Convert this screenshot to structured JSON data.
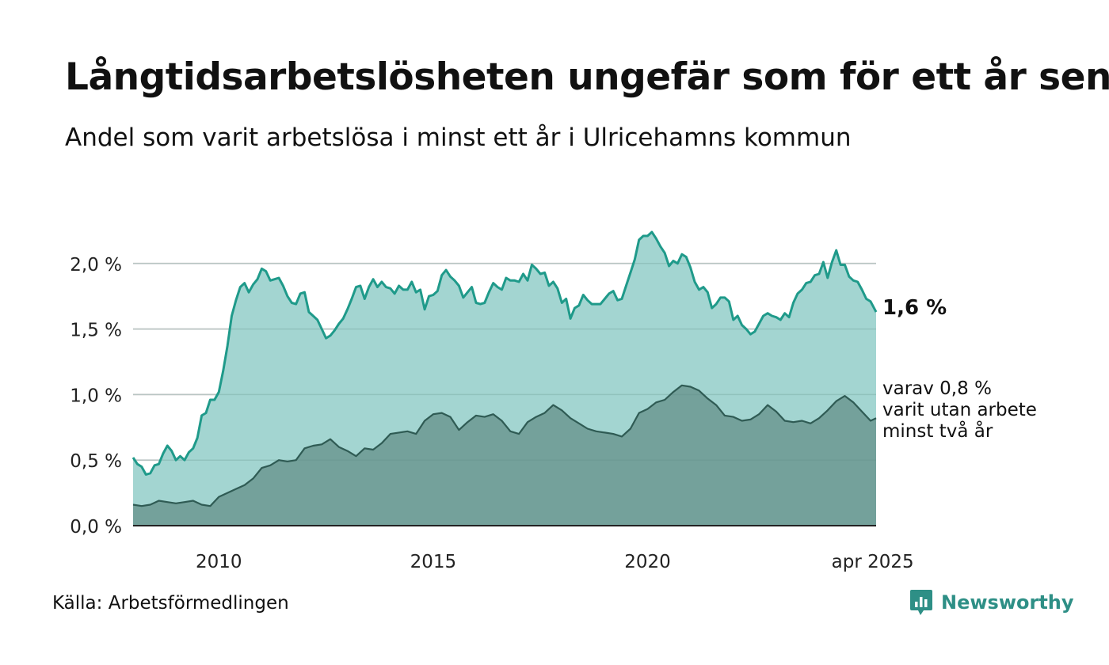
{
  "title": "Långtidsarbetslösheten ungefär som för ett år sen",
  "subtitle": "Andel som varit arbetslösa i minst ett år i Ulricehamns kommun",
  "source": "Källa: Arbetsförmedlingen",
  "brand": "Newsworthy",
  "colors": {
    "total_line": "#1f9a8a",
    "total_fill": "#a3d5d1",
    "twoyear_line": "#2f5b54",
    "twoyear_fill": "#729e98",
    "grid": "#d9d9d9",
    "brand": "#2e8f86"
  },
  "chart_data": {
    "type": "area",
    "x_unit": "year",
    "x_ticks": [
      {
        "value": 2010,
        "label": "2010"
      },
      {
        "value": 2015,
        "label": "2015"
      },
      {
        "value": 2020,
        "label": "2020"
      },
      {
        "value": 2025.25,
        "label": "apr 2025"
      }
    ],
    "y_ticks": [
      {
        "value": 0.0,
        "label": "0,0 %"
      },
      {
        "value": 0.5,
        "label": "0,5 %"
      },
      {
        "value": 1.0,
        "label": "1,0 %"
      },
      {
        "value": 1.5,
        "label": "1,5 %"
      },
      {
        "value": 2.0,
        "label": "2,0 %"
      }
    ],
    "xlim": [
      2008.0,
      2025.33
    ],
    "ylim": [
      0,
      2.5
    ],
    "grid": true,
    "series": [
      {
        "label": "1,6 %",
        "points": [
          [
            2008.0,
            0.52
          ],
          [
            2008.1,
            0.47
          ],
          [
            2008.2,
            0.45
          ],
          [
            2008.3,
            0.39
          ],
          [
            2008.4,
            0.4
          ],
          [
            2008.5,
            0.46
          ],
          [
            2008.6,
            0.47
          ],
          [
            2008.7,
            0.55
          ],
          [
            2008.8,
            0.61
          ],
          [
            2008.9,
            0.57
          ],
          [
            2009.0,
            0.5
          ],
          [
            2009.1,
            0.53
          ],
          [
            2009.2,
            0.5
          ],
          [
            2009.3,
            0.56
          ],
          [
            2009.4,
            0.59
          ],
          [
            2009.5,
            0.67
          ],
          [
            2009.6,
            0.84
          ],
          [
            2009.7,
            0.86
          ],
          [
            2009.8,
            0.96
          ],
          [
            2009.9,
            0.96
          ],
          [
            2010.0,
            1.02
          ],
          [
            2010.1,
            1.18
          ],
          [
            2010.2,
            1.37
          ],
          [
            2010.3,
            1.6
          ],
          [
            2010.4,
            1.72
          ],
          [
            2010.5,
            1.82
          ],
          [
            2010.6,
            1.85
          ],
          [
            2010.7,
            1.78
          ],
          [
            2010.8,
            1.84
          ],
          [
            2010.9,
            1.88
          ],
          [
            2011.0,
            1.96
          ],
          [
            2011.1,
            1.94
          ],
          [
            2011.2,
            1.87
          ],
          [
            2011.3,
            1.88
          ],
          [
            2011.4,
            1.89
          ],
          [
            2011.5,
            1.83
          ],
          [
            2011.6,
            1.75
          ],
          [
            2011.7,
            1.7
          ],
          [
            2011.8,
            1.69
          ],
          [
            2011.9,
            1.77
          ],
          [
            2012.0,
            1.78
          ],
          [
            2012.1,
            1.63
          ],
          [
            2012.2,
            1.6
          ],
          [
            2012.3,
            1.57
          ],
          [
            2012.4,
            1.5
          ],
          [
            2012.5,
            1.43
          ],
          [
            2012.6,
            1.45
          ],
          [
            2012.7,
            1.49
          ],
          [
            2012.8,
            1.54
          ],
          [
            2012.9,
            1.58
          ],
          [
            2013.0,
            1.65
          ],
          [
            2013.1,
            1.73
          ],
          [
            2013.2,
            1.82
          ],
          [
            2013.3,
            1.83
          ],
          [
            2013.4,
            1.73
          ],
          [
            2013.5,
            1.82
          ],
          [
            2013.6,
            1.88
          ],
          [
            2013.7,
            1.82
          ],
          [
            2013.8,
            1.86
          ],
          [
            2013.9,
            1.82
          ],
          [
            2014.0,
            1.81
          ],
          [
            2014.1,
            1.77
          ],
          [
            2014.2,
            1.83
          ],
          [
            2014.3,
            1.8
          ],
          [
            2014.4,
            1.8
          ],
          [
            2014.5,
            1.86
          ],
          [
            2014.6,
            1.78
          ],
          [
            2014.7,
            1.8
          ],
          [
            2014.8,
            1.65
          ],
          [
            2014.9,
            1.75
          ],
          [
            2015.0,
            1.76
          ],
          [
            2015.1,
            1.79
          ],
          [
            2015.2,
            1.91
          ],
          [
            2015.3,
            1.95
          ],
          [
            2015.4,
            1.9
          ],
          [
            2015.5,
            1.87
          ],
          [
            2015.6,
            1.83
          ],
          [
            2015.7,
            1.74
          ],
          [
            2015.8,
            1.78
          ],
          [
            2015.9,
            1.82
          ],
          [
            2016.0,
            1.7
          ],
          [
            2016.1,
            1.69
          ],
          [
            2016.2,
            1.7
          ],
          [
            2016.3,
            1.78
          ],
          [
            2016.4,
            1.85
          ],
          [
            2016.5,
            1.82
          ],
          [
            2016.6,
            1.8
          ],
          [
            2016.7,
            1.89
          ],
          [
            2016.8,
            1.87
          ],
          [
            2016.9,
            1.87
          ],
          [
            2017.0,
            1.86
          ],
          [
            2017.1,
            1.92
          ],
          [
            2017.2,
            1.87
          ],
          [
            2017.3,
            1.99
          ],
          [
            2017.4,
            1.96
          ],
          [
            2017.5,
            1.92
          ],
          [
            2017.6,
            1.93
          ],
          [
            2017.7,
            1.83
          ],
          [
            2017.8,
            1.86
          ],
          [
            2017.9,
            1.81
          ],
          [
            2018.0,
            1.7
          ],
          [
            2018.1,
            1.73
          ],
          [
            2018.2,
            1.58
          ],
          [
            2018.3,
            1.66
          ],
          [
            2018.4,
            1.68
          ],
          [
            2018.5,
            1.76
          ],
          [
            2018.6,
            1.72
          ],
          [
            2018.7,
            1.69
          ],
          [
            2018.8,
            1.69
          ],
          [
            2018.9,
            1.69
          ],
          [
            2019.0,
            1.73
          ],
          [
            2019.1,
            1.77
          ],
          [
            2019.2,
            1.79
          ],
          [
            2019.3,
            1.72
          ],
          [
            2019.4,
            1.73
          ],
          [
            2019.5,
            1.83
          ],
          [
            2019.6,
            1.93
          ],
          [
            2019.7,
            2.03
          ],
          [
            2019.8,
            2.18
          ],
          [
            2019.9,
            2.21
          ],
          [
            2020.0,
            2.21
          ],
          [
            2020.1,
            2.24
          ],
          [
            2020.2,
            2.19
          ],
          [
            2020.3,
            2.13
          ],
          [
            2020.4,
            2.08
          ],
          [
            2020.5,
            1.98
          ],
          [
            2020.6,
            2.02
          ],
          [
            2020.7,
            2.0
          ],
          [
            2020.8,
            2.07
          ],
          [
            2020.9,
            2.05
          ],
          [
            2021.0,
            1.97
          ],
          [
            2021.1,
            1.86
          ],
          [
            2021.2,
            1.8
          ],
          [
            2021.3,
            1.82
          ],
          [
            2021.4,
            1.78
          ],
          [
            2021.5,
            1.66
          ],
          [
            2021.6,
            1.69
          ],
          [
            2021.7,
            1.74
          ],
          [
            2021.8,
            1.74
          ],
          [
            2021.9,
            1.71
          ],
          [
            2022.0,
            1.57
          ],
          [
            2022.1,
            1.6
          ],
          [
            2022.2,
            1.53
          ],
          [
            2022.3,
            1.5
          ],
          [
            2022.4,
            1.46
          ],
          [
            2022.5,
            1.48
          ],
          [
            2022.6,
            1.54
          ],
          [
            2022.7,
            1.6
          ],
          [
            2022.8,
            1.62
          ],
          [
            2022.9,
            1.6
          ],
          [
            2023.0,
            1.59
          ],
          [
            2023.1,
            1.57
          ],
          [
            2023.2,
            1.62
          ],
          [
            2023.3,
            1.59
          ],
          [
            2023.4,
            1.7
          ],
          [
            2023.5,
            1.77
          ],
          [
            2023.6,
            1.8
          ],
          [
            2023.7,
            1.85
          ],
          [
            2023.8,
            1.86
          ],
          [
            2023.9,
            1.91
          ],
          [
            2024.0,
            1.92
          ],
          [
            2024.1,
            2.01
          ],
          [
            2024.2,
            1.89
          ],
          [
            2024.3,
            2.01
          ],
          [
            2024.4,
            2.1
          ],
          [
            2024.5,
            1.99
          ],
          [
            2024.6,
            1.99
          ],
          [
            2024.7,
            1.9
          ],
          [
            2024.8,
            1.87
          ],
          [
            2024.9,
            1.86
          ],
          [
            2025.0,
            1.8
          ],
          [
            2025.1,
            1.73
          ],
          [
            2025.2,
            1.71
          ],
          [
            2025.33,
            1.63
          ]
        ]
      },
      {
        "label": "varav 0,8 %\nvarit utan arbete\nminst två år",
        "points": [
          [
            2008.0,
            0.16
          ],
          [
            2008.2,
            0.15
          ],
          [
            2008.4,
            0.16
          ],
          [
            2008.6,
            0.19
          ],
          [
            2008.8,
            0.18
          ],
          [
            2009.0,
            0.17
          ],
          [
            2009.2,
            0.18
          ],
          [
            2009.4,
            0.19
          ],
          [
            2009.6,
            0.16
          ],
          [
            2009.8,
            0.15
          ],
          [
            2010.0,
            0.22
          ],
          [
            2010.2,
            0.25
          ],
          [
            2010.4,
            0.28
          ],
          [
            2010.6,
            0.31
          ],
          [
            2010.8,
            0.36
          ],
          [
            2011.0,
            0.44
          ],
          [
            2011.2,
            0.46
          ],
          [
            2011.4,
            0.5
          ],
          [
            2011.6,
            0.49
          ],
          [
            2011.8,
            0.5
          ],
          [
            2012.0,
            0.59
          ],
          [
            2012.2,
            0.61
          ],
          [
            2012.4,
            0.62
          ],
          [
            2012.6,
            0.66
          ],
          [
            2012.8,
            0.6
          ],
          [
            2013.0,
            0.57
          ],
          [
            2013.2,
            0.53
          ],
          [
            2013.4,
            0.59
          ],
          [
            2013.6,
            0.58
          ],
          [
            2013.8,
            0.63
          ],
          [
            2014.0,
            0.7
          ],
          [
            2014.2,
            0.71
          ],
          [
            2014.4,
            0.72
          ],
          [
            2014.6,
            0.7
          ],
          [
            2014.8,
            0.8
          ],
          [
            2015.0,
            0.85
          ],
          [
            2015.2,
            0.86
          ],
          [
            2015.4,
            0.83
          ],
          [
            2015.6,
            0.73
          ],
          [
            2015.8,
            0.79
          ],
          [
            2016.0,
            0.84
          ],
          [
            2016.2,
            0.83
          ],
          [
            2016.4,
            0.85
          ],
          [
            2016.6,
            0.8
          ],
          [
            2016.8,
            0.72
          ],
          [
            2017.0,
            0.7
          ],
          [
            2017.2,
            0.79
          ],
          [
            2017.4,
            0.83
          ],
          [
            2017.6,
            0.86
          ],
          [
            2017.8,
            0.92
          ],
          [
            2018.0,
            0.88
          ],
          [
            2018.2,
            0.82
          ],
          [
            2018.4,
            0.78
          ],
          [
            2018.6,
            0.74
          ],
          [
            2018.8,
            0.72
          ],
          [
            2019.0,
            0.71
          ],
          [
            2019.2,
            0.7
          ],
          [
            2019.4,
            0.68
          ],
          [
            2019.6,
            0.74
          ],
          [
            2019.8,
            0.86
          ],
          [
            2020.0,
            0.89
          ],
          [
            2020.2,
            0.94
          ],
          [
            2020.4,
            0.96
          ],
          [
            2020.6,
            1.02
          ],
          [
            2020.8,
            1.07
          ],
          [
            2021.0,
            1.06
          ],
          [
            2021.2,
            1.03
          ],
          [
            2021.4,
            0.97
          ],
          [
            2021.6,
            0.92
          ],
          [
            2021.8,
            0.84
          ],
          [
            2022.0,
            0.83
          ],
          [
            2022.2,
            0.8
          ],
          [
            2022.4,
            0.81
          ],
          [
            2022.6,
            0.85
          ],
          [
            2022.8,
            0.92
          ],
          [
            2023.0,
            0.87
          ],
          [
            2023.2,
            0.8
          ],
          [
            2023.4,
            0.79
          ],
          [
            2023.6,
            0.8
          ],
          [
            2023.8,
            0.78
          ],
          [
            2024.0,
            0.82
          ],
          [
            2024.2,
            0.88
          ],
          [
            2024.4,
            0.95
          ],
          [
            2024.6,
            0.99
          ],
          [
            2024.8,
            0.94
          ],
          [
            2025.0,
            0.87
          ],
          [
            2025.2,
            0.8
          ],
          [
            2025.33,
            0.82
          ]
        ]
      }
    ]
  }
}
